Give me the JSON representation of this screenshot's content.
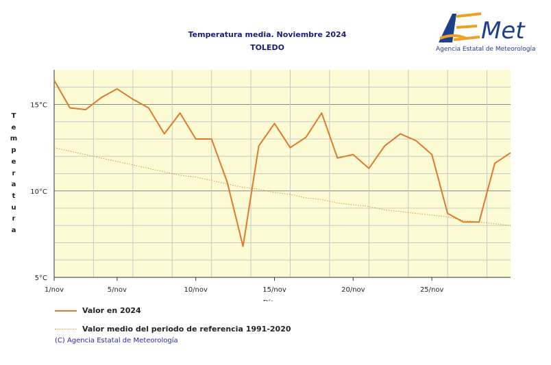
{
  "header": {
    "title": "Temperatura media. Noviembre 2024",
    "subtitle": "TOLEDO"
  },
  "logo": {
    "name": "AEMet",
    "subtitle": "Agencia Estatal de Meteorología"
  },
  "footer": {
    "copyright": "(C) Agencia Estatal de Meteorología"
  },
  "colors": {
    "plot_background": "#fdfbd4",
    "series_2024": "#e0782a",
    "series_reference": "#e09040",
    "grid": "#c8c8c8",
    "major_grid": "#888888"
  },
  "chart_data": {
    "type": "line",
    "xlabel": "Día",
    "ylabel": "Temperatura",
    "x_tick_labels": [
      "1/nov",
      "5/nov",
      "10/nov",
      "15/nov",
      "20/nov",
      "25/nov"
    ],
    "x_tick_days": [
      1,
      5,
      10,
      15,
      20,
      25
    ],
    "xlim": [
      1,
      30
    ],
    "y_tick_labels": [
      "5°C",
      "10°C",
      "15°C"
    ],
    "y_tick_values": [
      5,
      10,
      15
    ],
    "ylim": [
      5,
      17
    ],
    "grid": true,
    "legend_position": "bottom",
    "x": [
      1,
      2,
      3,
      4,
      5,
      6,
      7,
      8,
      9,
      10,
      11,
      12,
      13,
      14,
      15,
      16,
      17,
      18,
      19,
      20,
      21,
      22,
      23,
      24,
      25,
      26,
      27,
      28,
      29,
      30
    ],
    "series": [
      {
        "name": "Valor en 2024",
        "style": "solid",
        "values": [
          16.4,
          14.8,
          14.7,
          15.4,
          15.9,
          15.3,
          14.8,
          13.3,
          14.5,
          13.0,
          13.0,
          10.5,
          6.8,
          12.6,
          13.9,
          12.5,
          13.1,
          14.5,
          11.9,
          12.1,
          11.3,
          12.6,
          13.3,
          12.9,
          12.1,
          8.7,
          8.2,
          8.2,
          11.6,
          12.2
        ]
      },
      {
        "name": "Valor medio del periodo de referencia 1991-2020",
        "style": "dotted",
        "values": [
          12.5,
          12.3,
          12.1,
          11.9,
          11.7,
          11.5,
          11.3,
          11.1,
          10.9,
          10.8,
          10.6,
          10.4,
          10.2,
          10.1,
          9.9,
          9.8,
          9.6,
          9.5,
          9.3,
          9.2,
          9.1,
          8.9,
          8.8,
          8.7,
          8.6,
          8.5,
          8.3,
          8.2,
          8.1,
          8.0
        ]
      }
    ]
  }
}
